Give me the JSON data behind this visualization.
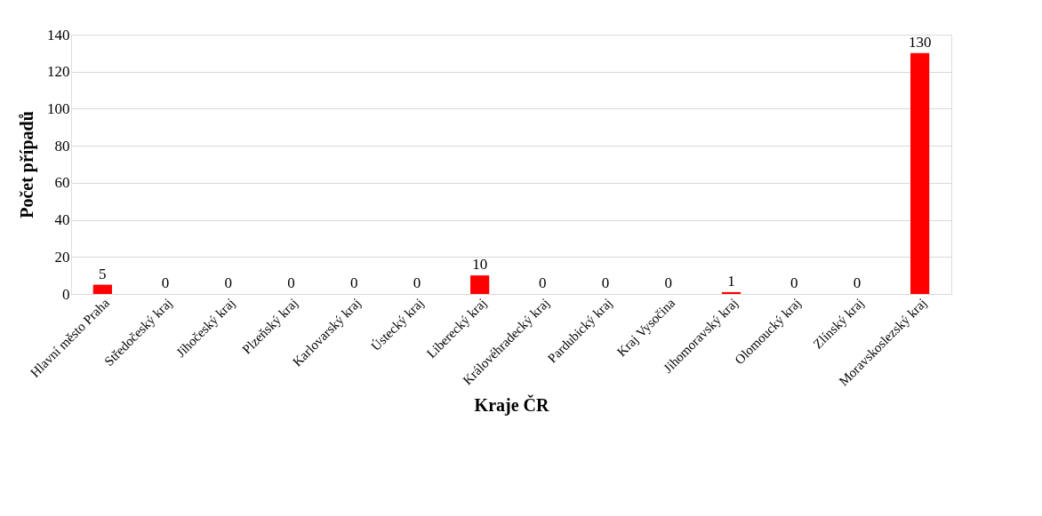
{
  "chart_data": {
    "type": "bar",
    "xlabel": "Kraje ČR",
    "ylabel": "Počet případů",
    "categories": [
      "Hlavní město Praha",
      "Středočeský kraj",
      "Jihočeský kraj",
      "Plzeňský kraj",
      "Karlovarský kraj",
      "Ústecký kraj",
      "Liberecký kraj",
      "Královéhradecký kraj",
      "Pardubický kraj",
      "Kraj Vysočina",
      "Jihomoravský kraj",
      "Olomoucký kraj",
      "Zlínský kraj",
      "Moravskoslezský kraj"
    ],
    "values": [
      5,
      0,
      0,
      0,
      0,
      0,
      10,
      0,
      0,
      0,
      1,
      0,
      0,
      130
    ],
    "color": "#ff0000",
    "ylim": [
      0,
      140
    ],
    "yticks": [
      0,
      20,
      40,
      60,
      80,
      100,
      120,
      140
    ],
    "grid": "y",
    "data_labels": true
  }
}
